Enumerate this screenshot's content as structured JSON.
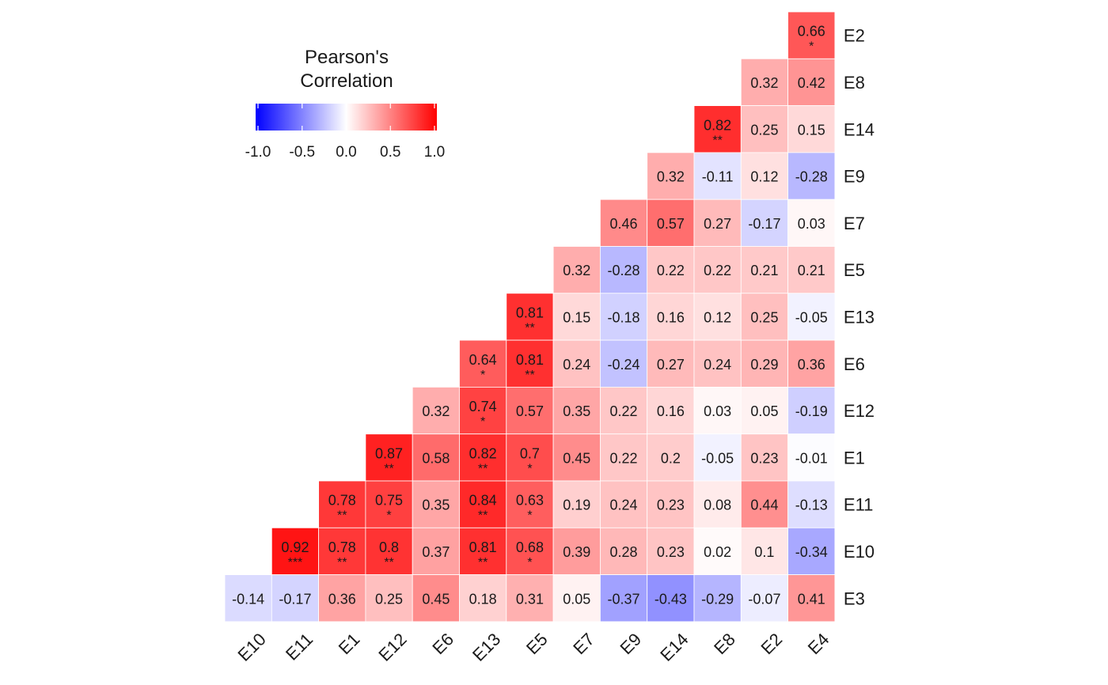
{
  "chart_data": {
    "type": "heatmap",
    "title": "",
    "legend": {
      "title_lines": [
        "Pearson's",
        "Correlation"
      ],
      "ticks": [
        "-1.0",
        "-0.5",
        "0.0",
        "0.5",
        "1.0"
      ],
      "range": [
        -1,
        1
      ],
      "placement": "top-left",
      "colors": {
        "low": "#0000ff",
        "mid": "#ffffff",
        "high": "#ff0000"
      }
    },
    "x_labels": [
      "E10",
      "E11",
      "E1",
      "E12",
      "E6",
      "E13",
      "E5",
      "E7",
      "E9",
      "E14",
      "E8",
      "E2",
      "E4"
    ],
    "y_labels": [
      "E2",
      "E8",
      "E14",
      "E9",
      "E7",
      "E5",
      "E13",
      "E6",
      "E12",
      "E1",
      "E11",
      "E10",
      "E3"
    ],
    "cells": [
      {
        "x": "E4",
        "y": "E2",
        "value": "0.66",
        "sig": "*"
      },
      {
        "x": "E2",
        "y": "E8",
        "value": "0.32",
        "sig": ""
      },
      {
        "x": "E4",
        "y": "E8",
        "value": "0.42",
        "sig": ""
      },
      {
        "x": "E8",
        "y": "E14",
        "value": "0.82",
        "sig": "**"
      },
      {
        "x": "E2",
        "y": "E14",
        "value": "0.25",
        "sig": ""
      },
      {
        "x": "E4",
        "y": "E14",
        "value": "0.15",
        "sig": ""
      },
      {
        "x": "E14",
        "y": "E9",
        "value": "0.32",
        "sig": ""
      },
      {
        "x": "E8",
        "y": "E9",
        "value": "-0.11",
        "sig": ""
      },
      {
        "x": "E2",
        "y": "E9",
        "value": "0.12",
        "sig": ""
      },
      {
        "x": "E4",
        "y": "E9",
        "value": "-0.28",
        "sig": ""
      },
      {
        "x": "E9",
        "y": "E7",
        "value": "0.46",
        "sig": ""
      },
      {
        "x": "E14",
        "y": "E7",
        "value": "0.57",
        "sig": ""
      },
      {
        "x": "E8",
        "y": "E7",
        "value": "0.27",
        "sig": ""
      },
      {
        "x": "E2",
        "y": "E7",
        "value": "-0.17",
        "sig": ""
      },
      {
        "x": "E4",
        "y": "E7",
        "value": "0.03",
        "sig": ""
      },
      {
        "x": "E7",
        "y": "E5",
        "value": "0.32",
        "sig": ""
      },
      {
        "x": "E9",
        "y": "E5",
        "value": "-0.28",
        "sig": ""
      },
      {
        "x": "E14",
        "y": "E5",
        "value": "0.22",
        "sig": ""
      },
      {
        "x": "E8",
        "y": "E5",
        "value": "0.22",
        "sig": ""
      },
      {
        "x": "E2",
        "y": "E5",
        "value": "0.21",
        "sig": ""
      },
      {
        "x": "E4",
        "y": "E5",
        "value": "0.21",
        "sig": ""
      },
      {
        "x": "E5",
        "y": "E13",
        "value": "0.81",
        "sig": "**"
      },
      {
        "x": "E7",
        "y": "E13",
        "value": "0.15",
        "sig": ""
      },
      {
        "x": "E9",
        "y": "E13",
        "value": "-0.18",
        "sig": ""
      },
      {
        "x": "E14",
        "y": "E13",
        "value": "0.16",
        "sig": ""
      },
      {
        "x": "E8",
        "y": "E13",
        "value": "0.12",
        "sig": ""
      },
      {
        "x": "E2",
        "y": "E13",
        "value": "0.25",
        "sig": ""
      },
      {
        "x": "E4",
        "y": "E13",
        "value": "-0.05",
        "sig": ""
      },
      {
        "x": "E13",
        "y": "E6",
        "value": "0.64",
        "sig": "*"
      },
      {
        "x": "E5",
        "y": "E6",
        "value": "0.81",
        "sig": "**"
      },
      {
        "x": "E7",
        "y": "E6",
        "value": "0.24",
        "sig": ""
      },
      {
        "x": "E9",
        "y": "E6",
        "value": "-0.24",
        "sig": ""
      },
      {
        "x": "E14",
        "y": "E6",
        "value": "0.27",
        "sig": ""
      },
      {
        "x": "E8",
        "y": "E6",
        "value": "0.24",
        "sig": ""
      },
      {
        "x": "E2",
        "y": "E6",
        "value": "0.29",
        "sig": ""
      },
      {
        "x": "E4",
        "y": "E6",
        "value": "0.36",
        "sig": ""
      },
      {
        "x": "E6",
        "y": "E12",
        "value": "0.32",
        "sig": ""
      },
      {
        "x": "E13",
        "y": "E12",
        "value": "0.74",
        "sig": "*"
      },
      {
        "x": "E5",
        "y": "E12",
        "value": "0.57",
        "sig": ""
      },
      {
        "x": "E7",
        "y": "E12",
        "value": "0.35",
        "sig": ""
      },
      {
        "x": "E9",
        "y": "E12",
        "value": "0.22",
        "sig": ""
      },
      {
        "x": "E14",
        "y": "E12",
        "value": "0.16",
        "sig": ""
      },
      {
        "x": "E8",
        "y": "E12",
        "value": "0.03",
        "sig": ""
      },
      {
        "x": "E2",
        "y": "E12",
        "value": "0.05",
        "sig": ""
      },
      {
        "x": "E4",
        "y": "E12",
        "value": "-0.19",
        "sig": ""
      },
      {
        "x": "E12",
        "y": "E1",
        "value": "0.87",
        "sig": "**"
      },
      {
        "x": "E6",
        "y": "E1",
        "value": "0.58",
        "sig": ""
      },
      {
        "x": "E13",
        "y": "E1",
        "value": "0.82",
        "sig": "**"
      },
      {
        "x": "E5",
        "y": "E1",
        "value": "0.7",
        "sig": "*"
      },
      {
        "x": "E7",
        "y": "E1",
        "value": "0.45",
        "sig": ""
      },
      {
        "x": "E9",
        "y": "E1",
        "value": "0.22",
        "sig": ""
      },
      {
        "x": "E14",
        "y": "E1",
        "value": "0.2",
        "sig": ""
      },
      {
        "x": "E8",
        "y": "E1",
        "value": "-0.05",
        "sig": ""
      },
      {
        "x": "E2",
        "y": "E1",
        "value": "0.23",
        "sig": ""
      },
      {
        "x": "E4",
        "y": "E1",
        "value": "-0.01",
        "sig": ""
      },
      {
        "x": "E1",
        "y": "E11",
        "value": "0.78",
        "sig": "**"
      },
      {
        "x": "E12",
        "y": "E11",
        "value": "0.75",
        "sig": "*"
      },
      {
        "x": "E6",
        "y": "E11",
        "value": "0.35",
        "sig": ""
      },
      {
        "x": "E13",
        "y": "E11",
        "value": "0.84",
        "sig": "**"
      },
      {
        "x": "E5",
        "y": "E11",
        "value": "0.63",
        "sig": "*"
      },
      {
        "x": "E7",
        "y": "E11",
        "value": "0.19",
        "sig": ""
      },
      {
        "x": "E9",
        "y": "E11",
        "value": "0.24",
        "sig": ""
      },
      {
        "x": "E14",
        "y": "E11",
        "value": "0.23",
        "sig": ""
      },
      {
        "x": "E8",
        "y": "E11",
        "value": "0.08",
        "sig": ""
      },
      {
        "x": "E2",
        "y": "E11",
        "value": "0.44",
        "sig": ""
      },
      {
        "x": "E4",
        "y": "E11",
        "value": "-0.13",
        "sig": ""
      },
      {
        "x": "E11",
        "y": "E10",
        "value": "0.92",
        "sig": "***"
      },
      {
        "x": "E1",
        "y": "E10",
        "value": "0.78",
        "sig": "**"
      },
      {
        "x": "E12",
        "y": "E10",
        "value": "0.8",
        "sig": "**"
      },
      {
        "x": "E6",
        "y": "E10",
        "value": "0.37",
        "sig": ""
      },
      {
        "x": "E13",
        "y": "E10",
        "value": "0.81",
        "sig": "**"
      },
      {
        "x": "E5",
        "y": "E10",
        "value": "0.68",
        "sig": "*"
      },
      {
        "x": "E7",
        "y": "E10",
        "value": "0.39",
        "sig": ""
      },
      {
        "x": "E9",
        "y": "E10",
        "value": "0.28",
        "sig": ""
      },
      {
        "x": "E14",
        "y": "E10",
        "value": "0.23",
        "sig": ""
      },
      {
        "x": "E8",
        "y": "E10",
        "value": "0.02",
        "sig": ""
      },
      {
        "x": "E2",
        "y": "E10",
        "value": "0.1",
        "sig": ""
      },
      {
        "x": "E4",
        "y": "E10",
        "value": "-0.34",
        "sig": ""
      },
      {
        "x": "E10",
        "y": "E3",
        "value": "-0.14",
        "sig": ""
      },
      {
        "x": "E11",
        "y": "E3",
        "value": "-0.17",
        "sig": ""
      },
      {
        "x": "E1",
        "y": "E3",
        "value": "0.36",
        "sig": ""
      },
      {
        "x": "E12",
        "y": "E3",
        "value": "0.25",
        "sig": ""
      },
      {
        "x": "E6",
        "y": "E3",
        "value": "0.45",
        "sig": ""
      },
      {
        "x": "E13",
        "y": "E3",
        "value": "0.18",
        "sig": ""
      },
      {
        "x": "E5",
        "y": "E3",
        "value": "0.31",
        "sig": ""
      },
      {
        "x": "E7",
        "y": "E3",
        "value": "0.05",
        "sig": ""
      },
      {
        "x": "E9",
        "y": "E3",
        "value": "-0.37",
        "sig": ""
      },
      {
        "x": "E14",
        "y": "E3",
        "value": "-0.43",
        "sig": ""
      },
      {
        "x": "E8",
        "y": "E3",
        "value": "-0.29",
        "sig": ""
      },
      {
        "x": "E2",
        "y": "E3",
        "value": "-0.07",
        "sig": ""
      },
      {
        "x": "E4",
        "y": "E3",
        "value": "0.41",
        "sig": ""
      }
    ]
  }
}
